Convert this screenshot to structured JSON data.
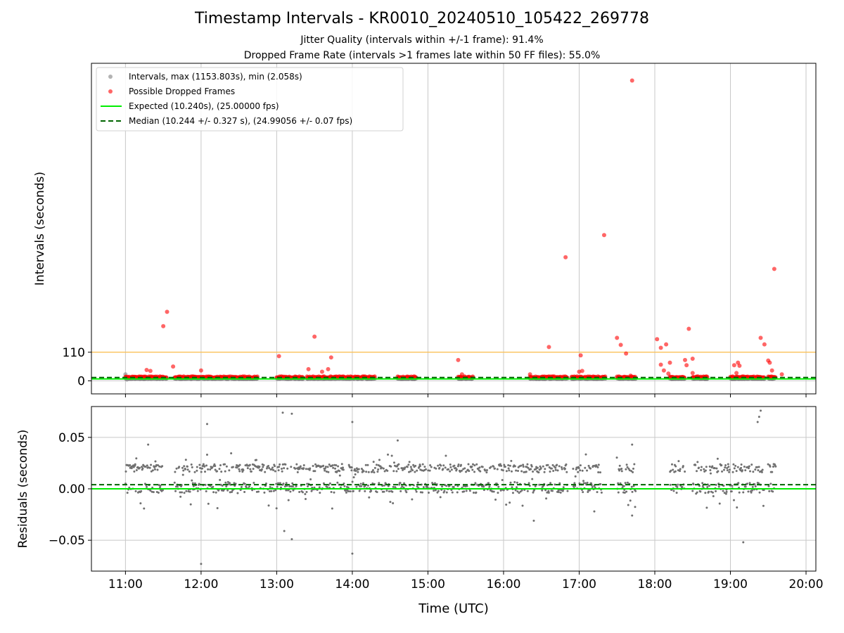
{
  "header": {
    "title": "Timestamp Intervals - KR0010_20240510_105422_269778",
    "subtitle_1": "Jitter Quality (intervals within +/-1 frame): 91.4%",
    "subtitle_2": "Dropped Frame Rate (intervals >1 frames late within 50 FF files): 55.0%"
  },
  "colors": {
    "intervals": "#808080",
    "dropped": "#ff0000",
    "expected": "#00ee00",
    "median": "#006400",
    "threshold": "#ffc04d",
    "grid": "#c8c8c8"
  },
  "chart_data": [
    {
      "type": "scatter",
      "ylabel": "Intervals (seconds)",
      "x_unit": "hours UTC",
      "xlim": [
        10.55,
        20.13
      ],
      "ylim": [
        -50,
        1220
      ],
      "y_ticks": [
        {
          "value": 0,
          "label": "0"
        },
        {
          "value": 110,
          "label": "110"
        }
      ],
      "threshold_line": 110,
      "expected_line": 10.24,
      "median_line": 10.244,
      "legend": {
        "position": "top-left",
        "entries": [
          "Intervals, max (1153.803s), min (2.058s)",
          "Possible Dropped Frames",
          "Expected (10.240s), (25.00000 fps)",
          "Median (10.244 +/- 0.327 s), (24.99056 +/- 0.07 fps)"
        ]
      },
      "interval_segments": [
        [
          11.0,
          11.55
        ],
        [
          11.65,
          12.3
        ],
        [
          12.3,
          12.75
        ],
        [
          13.0,
          13.35
        ],
        [
          13.4,
          14.2
        ],
        [
          14.2,
          14.3
        ],
        [
          14.6,
          14.85
        ],
        [
          15.4,
          15.6
        ],
        [
          16.35,
          16.55
        ],
        [
          16.55,
          16.85
        ],
        [
          16.9,
          17.35
        ],
        [
          17.5,
          17.75
        ],
        [
          18.2,
          18.4
        ],
        [
          18.5,
          18.7
        ],
        [
          19.0,
          19.45
        ],
        [
          19.5,
          19.6
        ]
      ],
      "interval_points": [
        {
          "x": 11.0,
          "y": 25
        },
        {
          "x": 11.0,
          "y": 10
        },
        {
          "x": 11.02,
          "y": 5
        }
      ],
      "dropped_frames": [
        {
          "x": 11.5,
          "y": 210
        },
        {
          "x": 11.55,
          "y": 265
        },
        {
          "x": 11.63,
          "y": 55
        },
        {
          "x": 11.28,
          "y": 42
        },
        {
          "x": 11.33,
          "y": 38
        },
        {
          "x": 12.0,
          "y": 40
        },
        {
          "x": 13.03,
          "y": 95
        },
        {
          "x": 13.5,
          "y": 170
        },
        {
          "x": 13.72,
          "y": 90
        },
        {
          "x": 13.42,
          "y": 45
        },
        {
          "x": 13.6,
          "y": 35
        },
        {
          "x": 13.68,
          "y": 45
        },
        {
          "x": 15.4,
          "y": 80
        },
        {
          "x": 15.45,
          "y": 25
        },
        {
          "x": 16.35,
          "y": 25
        },
        {
          "x": 16.6,
          "y": 130
        },
        {
          "x": 16.82,
          "y": 475
        },
        {
          "x": 17.02,
          "y": 98
        },
        {
          "x": 17.0,
          "y": 35
        },
        {
          "x": 17.04,
          "y": 38
        },
        {
          "x": 17.33,
          "y": 560
        },
        {
          "x": 17.5,
          "y": 165
        },
        {
          "x": 17.55,
          "y": 138
        },
        {
          "x": 17.62,
          "y": 105
        },
        {
          "x": 17.7,
          "y": 1153.803
        },
        {
          "x": 17.68,
          "y": 20
        },
        {
          "x": 18.03,
          "y": 160
        },
        {
          "x": 18.08,
          "y": 127
        },
        {
          "x": 18.15,
          "y": 140
        },
        {
          "x": 18.12,
          "y": 40
        },
        {
          "x": 18.08,
          "y": 62
        },
        {
          "x": 18.18,
          "y": 28
        },
        {
          "x": 18.2,
          "y": 70
        },
        {
          "x": 18.4,
          "y": 80
        },
        {
          "x": 18.45,
          "y": 200
        },
        {
          "x": 18.42,
          "y": 60
        },
        {
          "x": 18.5,
          "y": 85
        },
        {
          "x": 18.5,
          "y": 30
        },
        {
          "x": 19.05,
          "y": 60
        },
        {
          "x": 19.1,
          "y": 70
        },
        {
          "x": 19.12,
          "y": 58
        },
        {
          "x": 19.08,
          "y": 30
        },
        {
          "x": 19.4,
          "y": 165
        },
        {
          "x": 19.45,
          "y": 140
        },
        {
          "x": 19.5,
          "y": 78
        },
        {
          "x": 19.52,
          "y": 70
        },
        {
          "x": 19.55,
          "y": 40
        },
        {
          "x": 19.58,
          "y": 430
        },
        {
          "x": 19.68,
          "y": 25
        }
      ]
    },
    {
      "type": "scatter",
      "xlabel": "Time (UTC)",
      "ylabel": "Residuals (seconds)",
      "xlim": [
        10.55,
        20.13
      ],
      "ylim": [
        -0.08,
        0.08
      ],
      "x_ticks": [
        {
          "value": 11,
          "label": "11:00"
        },
        {
          "value": 12,
          "label": "12:00"
        },
        {
          "value": 13,
          "label": "13:00"
        },
        {
          "value": 14,
          "label": "14:00"
        },
        {
          "value": 15,
          "label": "15:00"
        },
        {
          "value": 16,
          "label": "16:00"
        },
        {
          "value": 17,
          "label": "17:00"
        },
        {
          "value": 18,
          "label": "18:00"
        },
        {
          "value": 19,
          "label": "19:00"
        },
        {
          "value": 20,
          "label": "20:00"
        }
      ],
      "y_ticks": [
        {
          "value": 0.05,
          "label": "0.05"
        },
        {
          "value": 0.0,
          "label": "0.00"
        },
        {
          "value": -0.05,
          "label": "−0.05"
        }
      ],
      "expected_line": 0.0,
      "median_line": 0.004,
      "residual_segments": [
        [
          11.0,
          11.5
        ],
        [
          11.65,
          12.7
        ],
        [
          12.7,
          13.95
        ],
        [
          13.95,
          14.9
        ],
        [
          14.9,
          15.6
        ],
        [
          15.6,
          16.6
        ],
        [
          16.6,
          16.85
        ],
        [
          16.92,
          17.3
        ],
        [
          17.5,
          17.75
        ],
        [
          18.2,
          18.4
        ],
        [
          18.5,
          18.95
        ],
        [
          18.95,
          19.45
        ],
        [
          19.5,
          19.6
        ]
      ],
      "residual_outliers": [
        {
          "x": 12.0,
          "y": -0.073
        },
        {
          "x": 12.08,
          "y": 0.063
        },
        {
          "x": 13.08,
          "y": 0.074
        },
        {
          "x": 13.2,
          "y": 0.073
        },
        {
          "x": 13.1,
          "y": -0.041
        },
        {
          "x": 13.2,
          "y": -0.049
        },
        {
          "x": 14.0,
          "y": 0.065
        },
        {
          "x": 14.0,
          "y": -0.063
        },
        {
          "x": 19.17,
          "y": -0.052
        },
        {
          "x": 19.4,
          "y": 0.076
        },
        {
          "x": 19.38,
          "y": 0.07
        },
        {
          "x": 19.36,
          "y": 0.065
        },
        {
          "x": 11.3,
          "y": 0.043
        },
        {
          "x": 14.6,
          "y": 0.047
        },
        {
          "x": 17.7,
          "y": 0.043
        },
        {
          "x": 17.7,
          "y": -0.026
        },
        {
          "x": 17.2,
          "y": -0.022
        },
        {
          "x": 16.4,
          "y": -0.031
        }
      ]
    }
  ]
}
